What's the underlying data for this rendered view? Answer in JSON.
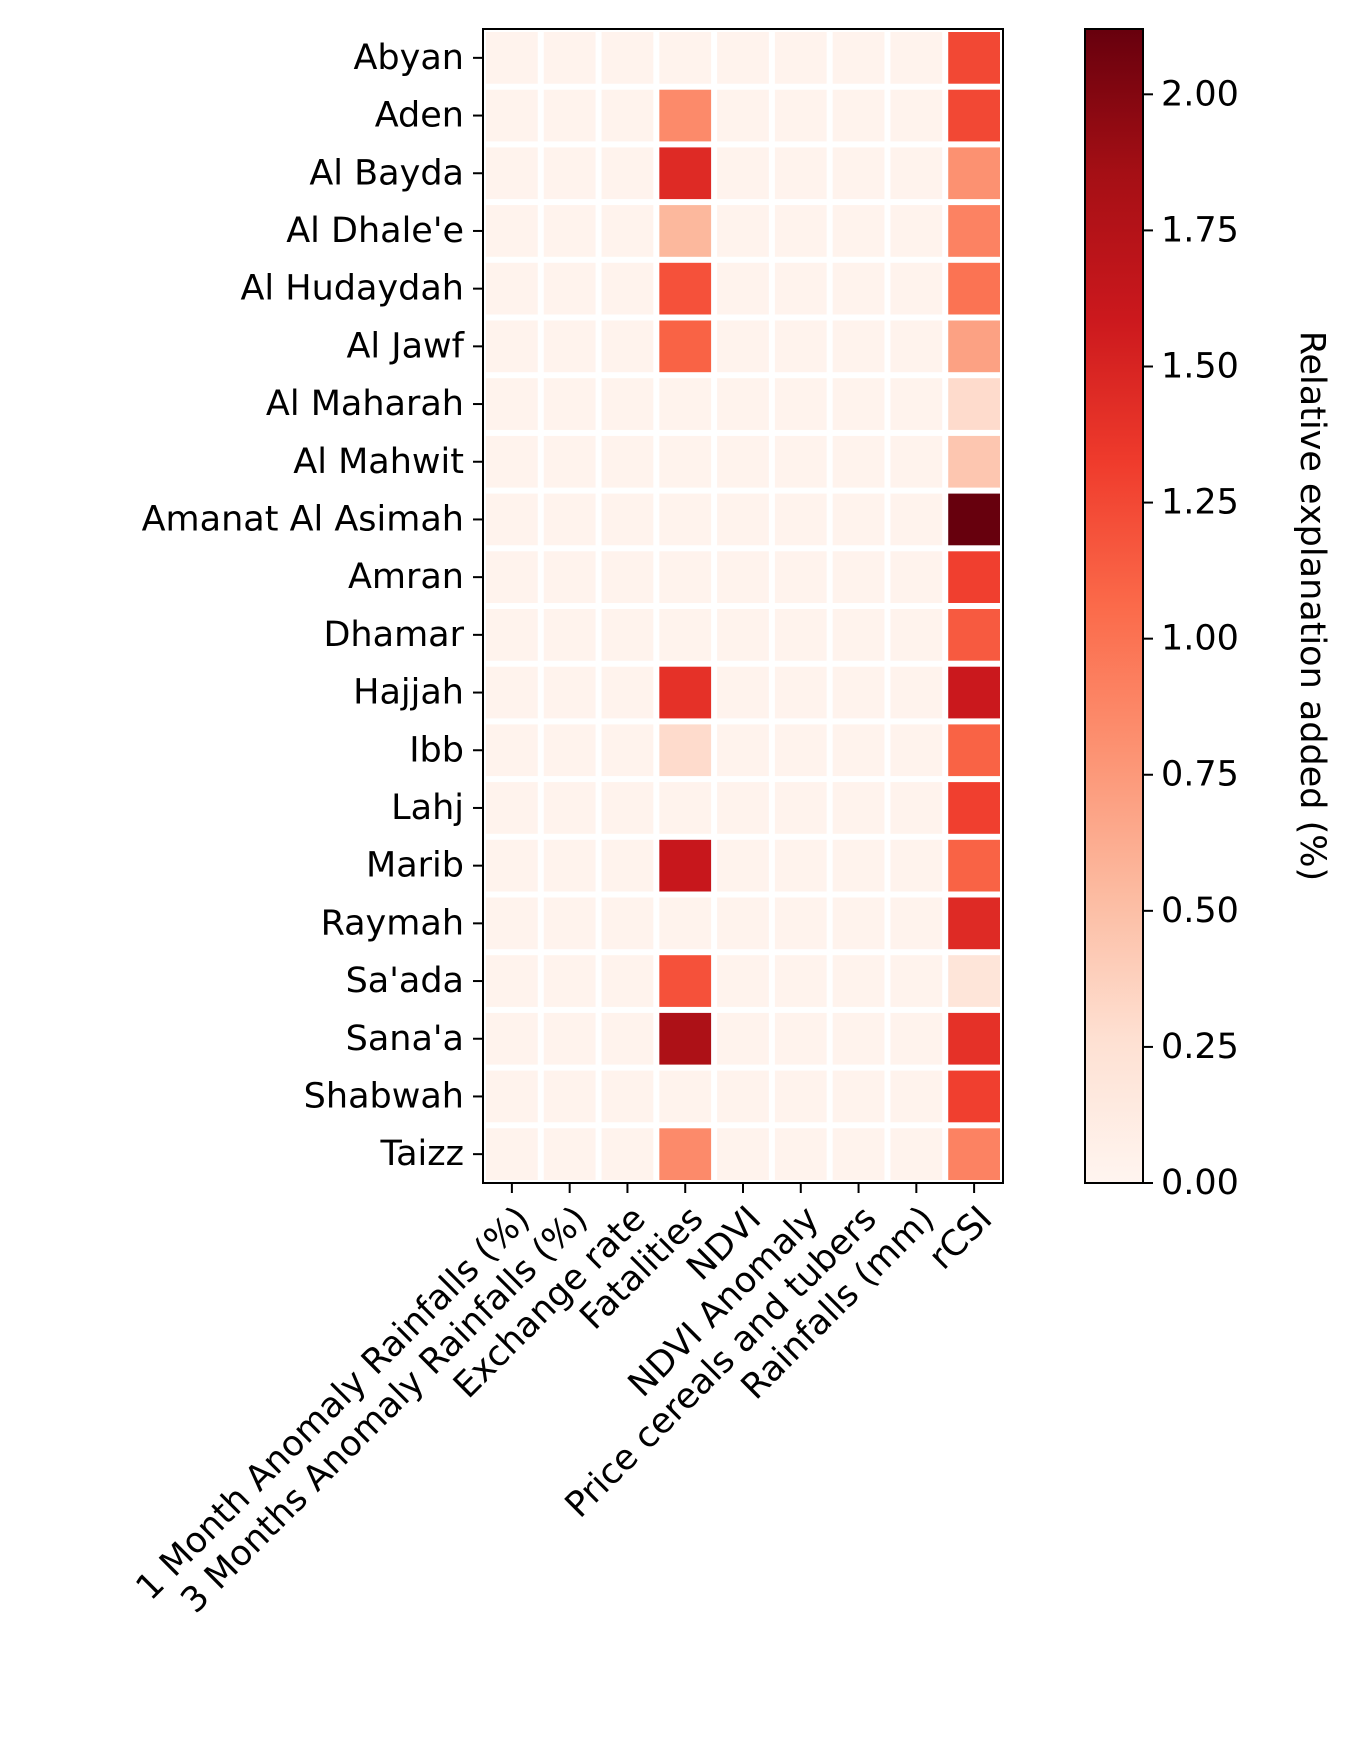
{
  "chart_data": {
    "type": "heatmap",
    "rows": [
      "Abyan",
      "Aden",
      "Al Bayda",
      "Al Dhale'e",
      "Al Hudaydah",
      "Al Jawf",
      "Al Maharah",
      "Al Mahwit",
      "Amanat Al Asimah",
      "Amran",
      "Dhamar",
      "Hajjah",
      "Ibb",
      "Lahj",
      "Marib",
      "Raymah",
      "Sa'ada",
      "Sana'a",
      "Shabwah",
      "Taizz"
    ],
    "columns": [
      "1 Month Anomaly Rainfalls (%)",
      "3 Months Anomaly Rainfalls (%)",
      "Exchange rate",
      "Fatalities",
      "NDVI",
      "NDVI Anomaly",
      "Price cereals and tubers",
      "Rainfalls (mm)",
      "rCSI"
    ],
    "values": [
      [
        0.03,
        0.03,
        0.03,
        0.03,
        0.03,
        0.03,
        0.03,
        0.03,
        1.25
      ],
      [
        0.03,
        0.03,
        0.03,
        0.85,
        0.03,
        0.03,
        0.03,
        0.03,
        1.25
      ],
      [
        0.03,
        0.03,
        0.03,
        1.45,
        0.03,
        0.03,
        0.03,
        0.03,
        0.8
      ],
      [
        0.03,
        0.03,
        0.03,
        0.55,
        0.03,
        0.03,
        0.03,
        0.03,
        0.9
      ],
      [
        0.03,
        0.03,
        0.03,
        1.2,
        0.03,
        0.03,
        0.03,
        0.03,
        1.0
      ],
      [
        0.03,
        0.03,
        0.03,
        1.1,
        0.03,
        0.03,
        0.03,
        0.03,
        0.7
      ],
      [
        0.03,
        0.03,
        0.03,
        0.03,
        0.03,
        0.03,
        0.03,
        0.03,
        0.3
      ],
      [
        0.03,
        0.03,
        0.03,
        0.03,
        0.03,
        0.03,
        0.03,
        0.03,
        0.45
      ],
      [
        0.03,
        0.03,
        0.03,
        0.03,
        0.03,
        0.03,
        0.03,
        0.03,
        2.12
      ],
      [
        0.03,
        0.03,
        0.03,
        0.03,
        0.03,
        0.03,
        0.03,
        0.03,
        1.3
      ],
      [
        0.03,
        0.03,
        0.03,
        0.03,
        0.03,
        0.03,
        0.03,
        0.03,
        1.15
      ],
      [
        0.03,
        0.03,
        0.03,
        1.4,
        0.03,
        0.03,
        0.03,
        0.03,
        1.6
      ],
      [
        0.03,
        0.03,
        0.03,
        0.3,
        0.03,
        0.03,
        0.03,
        0.03,
        1.1
      ],
      [
        0.03,
        0.03,
        0.03,
        0.03,
        0.03,
        0.03,
        0.03,
        0.03,
        1.3
      ],
      [
        0.03,
        0.03,
        0.03,
        1.62,
        0.03,
        0.03,
        0.03,
        0.03,
        1.1
      ],
      [
        0.03,
        0.03,
        0.03,
        0.03,
        0.03,
        0.03,
        0.03,
        0.03,
        1.45
      ],
      [
        0.03,
        0.03,
        0.03,
        1.2,
        0.03,
        0.03,
        0.03,
        0.03,
        0.2
      ],
      [
        0.03,
        0.03,
        0.03,
        1.8,
        0.03,
        0.03,
        0.03,
        0.03,
        1.4
      ],
      [
        0.03,
        0.03,
        0.03,
        0.03,
        0.03,
        0.03,
        0.03,
        0.03,
        1.3
      ],
      [
        0.03,
        0.03,
        0.03,
        0.85,
        0.03,
        0.03,
        0.03,
        0.03,
        0.9
      ]
    ],
    "colorbar": {
      "label": "Relative explanation added (%)",
      "min": 0,
      "max": 2.12,
      "ticks": [
        "0.00",
        "0.25",
        "0.50",
        "0.75",
        "1.00",
        "1.25",
        "1.50",
        "1.75",
        "2.00"
      ],
      "colormap": "Reds",
      "colors": [
        "#fff5f0",
        "#fee0d2",
        "#fcbba1",
        "#fc9272",
        "#fb6a4a",
        "#ef3b2c",
        "#cb181d",
        "#a50f15",
        "#67000d"
      ]
    },
    "cell_border_color": "#ffffff",
    "grid": false
  }
}
